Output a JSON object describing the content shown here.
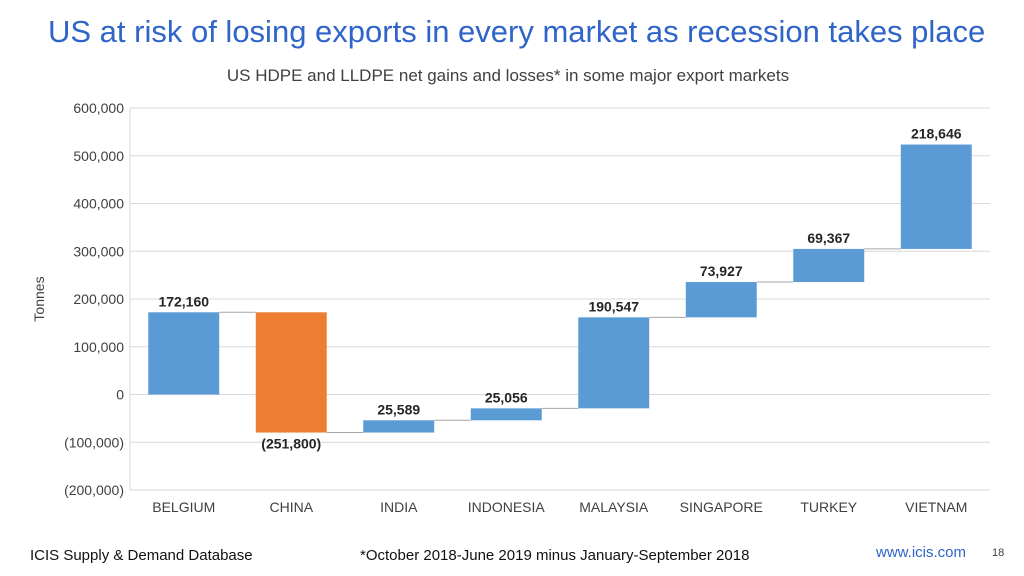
{
  "slide": {
    "title": "US at risk of losing exports in every market as recession takes place",
    "source": "ICIS Supply & Demand Database",
    "footnote": "*October 2018-June 2019 minus January-September 2018",
    "url": "www.icis.com",
    "page_number": "18"
  },
  "colors": {
    "gain": "#5b9bd5",
    "loss": "#ed7d31",
    "title": "#2f64c9",
    "grid": "#d9d9d9",
    "axis_text": "#404040",
    "label_text": "#262626"
  },
  "chart_data": {
    "type": "waterfall",
    "title": "US HDPE and LLDPE net gains and losses* in some major export markets",
    "xlabel": "",
    "ylabel": "Tonnes",
    "ylim": [
      -200000,
      600000
    ],
    "yticks": [
      -200000,
      -100000,
      0,
      100000,
      200000,
      300000,
      400000,
      500000,
      600000
    ],
    "ytick_labels": [
      "(200,000)",
      "(100,000)",
      "0",
      "100,000",
      "200,000",
      "300,000",
      "400,000",
      "500,000",
      "600,000"
    ],
    "grid": true,
    "legend": "none",
    "categories": [
      "BELGIUM",
      "CHINA",
      "INDIA",
      "INDONESIA",
      "MALAYSIA",
      "SINGAPORE",
      "TURKEY",
      "VIETNAM"
    ],
    "values": [
      172160,
      -251800,
      25589,
      25056,
      190547,
      73927,
      69367,
      218646
    ],
    "value_labels": [
      "172,160",
      "(251,800)",
      "25,589",
      "25,056",
      "190,547",
      "73,927",
      "69,367",
      "218,646"
    ]
  }
}
